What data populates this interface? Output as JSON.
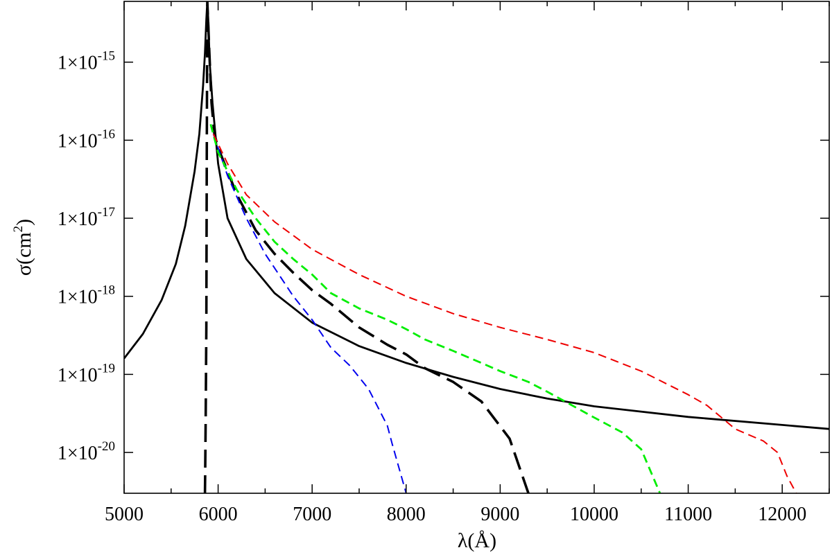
{
  "chart_data": {
    "type": "line",
    "title": "",
    "xlabel": "λ(Å)",
    "ylabel": {
      "base": "σ(cm",
      "sup": "2",
      "close": ")"
    },
    "xlim": [
      5000,
      12500
    ],
    "ylim": [
      3e-21,
      6e-15
    ],
    "y_scale": "log",
    "legend": "none",
    "grid": false,
    "x_ticks": [
      5000,
      6000,
      7000,
      8000,
      9000,
      10000,
      11000,
      12000
    ],
    "x_tick_labels": [
      "5000",
      "6000",
      "7000",
      "8000",
      "9000",
      "10000",
      "11000",
      "12000"
    ],
    "y_ticks": [
      {
        "value": 1e-15,
        "base": "1×10",
        "exp": "-15"
      },
      {
        "value": 1e-16,
        "base": "1×10",
        "exp": "-16"
      },
      {
        "value": 1e-17,
        "base": "1×10",
        "exp": "-17"
      },
      {
        "value": 1e-18,
        "base": "1×10",
        "exp": "-18"
      },
      {
        "value": 1e-19,
        "base": "1×10",
        "exp": "-19"
      },
      {
        "value": 1e-20,
        "base": "1×10",
        "exp": "-20"
      }
    ],
    "series": [
      {
        "color": "#000000",
        "style": "solid",
        "width": 2.8,
        "points": [
          [
            5000,
            1.6e-19
          ],
          [
            5200,
            3.3e-19
          ],
          [
            5400,
            9e-19
          ],
          [
            5550,
            2.6e-18
          ],
          [
            5650,
            8e-18
          ],
          [
            5750,
            4e-17
          ],
          [
            5800,
            1.2e-16
          ],
          [
            5840,
            5e-16
          ],
          [
            5860,
            1.3e-15
          ],
          [
            5875,
            3.5e-15
          ],
          [
            5885,
            6e-15
          ],
          [
            5895,
            3.5e-15
          ],
          [
            5910,
            1e-15
          ],
          [
            5940,
            3e-16
          ],
          [
            6000,
            5e-17
          ],
          [
            6100,
            1e-17
          ],
          [
            6300,
            3e-18
          ],
          [
            6600,
            1.1e-18
          ],
          [
            7000,
            4.6e-19
          ],
          [
            7500,
            2.3e-19
          ],
          [
            8000,
            1.4e-19
          ],
          [
            8500,
            9.3e-20
          ],
          [
            9000,
            6.5e-20
          ],
          [
            9500,
            4.9e-20
          ],
          [
            10000,
            3.9e-20
          ],
          [
            11000,
            2.85e-20
          ],
          [
            12000,
            2.25e-20
          ],
          [
            12500,
            2e-20
          ]
        ]
      },
      {
        "color": "#000000",
        "style": "longdash",
        "width": 3.6,
        "points": [
          [
            5860,
            3e-21
          ],
          [
            5862,
            5e-21
          ],
          [
            5868,
            3e-20
          ],
          [
            5875,
            4e-19
          ],
          [
            5880,
            1e-16
          ],
          [
            5885,
            6e-15
          ],
          [
            5895,
            3e-15
          ],
          [
            5905,
            1.5e-15
          ],
          [
            5930,
            3e-16
          ],
          [
            5960,
            1.2e-16
          ],
          [
            6000,
            8e-17
          ],
          [
            6100,
            4e-17
          ],
          [
            6200,
            2e-17
          ],
          [
            6400,
            7e-18
          ],
          [
            6600,
            3.5e-18
          ],
          [
            6800,
            2e-18
          ],
          [
            7000,
            1.2e-18
          ],
          [
            7200,
            8e-19
          ],
          [
            7500,
            4e-19
          ],
          [
            7800,
            2.4e-19
          ],
          [
            8000,
            1.8e-19
          ],
          [
            8200,
            1.2e-19
          ],
          [
            8500,
            8e-20
          ],
          [
            8800,
            4.5e-20
          ],
          [
            9100,
            1.5e-20
          ],
          [
            9300,
            3e-21
          ]
        ]
      },
      {
        "color": "#0000ee",
        "style": "dash",
        "width": 2,
        "points": [
          [
            5950,
            1.2e-16
          ],
          [
            6100,
            3.5e-17
          ],
          [
            6300,
            1e-17
          ],
          [
            6500,
            3.5e-18
          ],
          [
            6800,
            1e-18
          ],
          [
            7000,
            5e-19
          ],
          [
            7200,
            2.2e-19
          ],
          [
            7400,
            1.3e-19
          ],
          [
            7600,
            6.5e-20
          ],
          [
            7800,
            2.2e-20
          ],
          [
            7850,
            1.3e-20
          ],
          [
            8000,
            3e-21
          ]
        ]
      },
      {
        "color": "#00ee00",
        "style": "dash",
        "width": 2.8,
        "points": [
          [
            5920,
            1.6e-16
          ],
          [
            6000,
            7e-17
          ],
          [
            6200,
            2.3e-17
          ],
          [
            6400,
            1e-17
          ],
          [
            6600,
            5e-18
          ],
          [
            6800,
            3e-18
          ],
          [
            7000,
            1.9e-18
          ],
          [
            7200,
            1.1e-18
          ],
          [
            7500,
            7e-19
          ],
          [
            7800,
            5e-19
          ],
          [
            8000,
            3.8e-19
          ],
          [
            8200,
            2.8e-19
          ],
          [
            8500,
            2e-19
          ],
          [
            8800,
            1.4e-19
          ],
          [
            9000,
            1.1e-19
          ],
          [
            9300,
            8e-20
          ],
          [
            9500,
            6e-20
          ],
          [
            9800,
            3.8e-20
          ],
          [
            10000,
            2.8e-20
          ],
          [
            10300,
            1.8e-20
          ],
          [
            10500,
            1.1e-20
          ],
          [
            10700,
            3e-21
          ]
        ]
      },
      {
        "color": "#ee0000",
        "style": "dash",
        "width": 2,
        "points": [
          [
            5950,
            1.2e-16
          ],
          [
            6100,
            5e-17
          ],
          [
            6300,
            2e-17
          ],
          [
            6600,
            9e-18
          ],
          [
            7000,
            4e-18
          ],
          [
            7500,
            1.9e-18
          ],
          [
            8000,
            1e-18
          ],
          [
            8500,
            6e-19
          ],
          [
            9000,
            4e-19
          ],
          [
            9500,
            2.8e-19
          ],
          [
            10000,
            1.9e-19
          ],
          [
            10500,
            1.1e-19
          ],
          [
            11000,
            5.5e-20
          ],
          [
            11200,
            4e-20
          ],
          [
            11500,
            2e-20
          ],
          [
            11800,
            1.4e-20
          ],
          [
            11950,
            1e-20
          ],
          [
            12050,
            5e-21
          ],
          [
            12150,
            3e-21
          ]
        ]
      }
    ]
  }
}
